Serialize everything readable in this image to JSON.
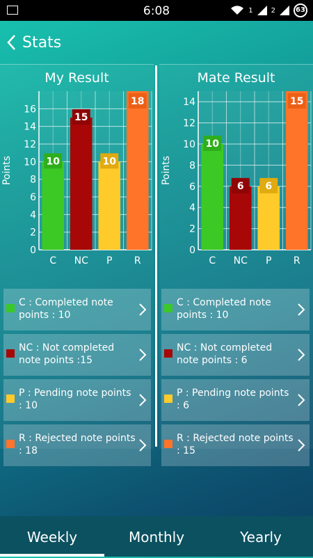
{
  "status_bar": {
    "time": "6:08",
    "sim1": "1",
    "sim2": "2",
    "battery": "63"
  },
  "header": {
    "title": "Stats"
  },
  "colors": {
    "C": "#3cc926",
    "NC": "#a70707",
    "P": "#fecb2a",
    "R": "#ff7429"
  },
  "panels": [
    {
      "title": "My Result",
      "legend": [
        {
          "key": "C",
          "text": "C : Completed note points : 10"
        },
        {
          "key": "NC",
          "text": "NC : Not completed note points :15"
        },
        {
          "key": "P",
          "text": "P : Pending note points : 10"
        },
        {
          "key": "R",
          "text": "R : Rejected note points : 18"
        }
      ]
    },
    {
      "title": "Mate Result",
      "legend": [
        {
          "key": "C",
          "text": "C : Completed note points : 10"
        },
        {
          "key": "NC",
          "text": "NC : Not completed note points : 6"
        },
        {
          "key": "P",
          "text": "P : Pending note points : 6"
        },
        {
          "key": "R",
          "text": "R : Rejected note points : 15"
        }
      ]
    }
  ],
  "chart_data": [
    {
      "type": "bar",
      "title": "My Result",
      "categories": [
        "C",
        "NC",
        "P",
        "R"
      ],
      "values": [
        10,
        15,
        10,
        18
      ],
      "ylabel": "Points",
      "ylim": [
        0,
        18
      ],
      "yticks": [
        0,
        2,
        4,
        6,
        8,
        10,
        12,
        14,
        16
      ],
      "grid": true
    },
    {
      "type": "bar",
      "title": "Mate Result",
      "categories": [
        "C",
        "NC",
        "P",
        "R"
      ],
      "values": [
        10,
        6,
        6,
        15
      ],
      "ylabel": "Points",
      "ylim": [
        0,
        15
      ],
      "yticks": [
        0,
        2,
        4,
        6,
        8,
        10,
        12,
        14
      ],
      "grid": true
    }
  ],
  "tabs": [
    {
      "label": "Weekly",
      "active": true
    },
    {
      "label": "Monthly",
      "active": false
    },
    {
      "label": "Yearly",
      "active": false
    }
  ]
}
